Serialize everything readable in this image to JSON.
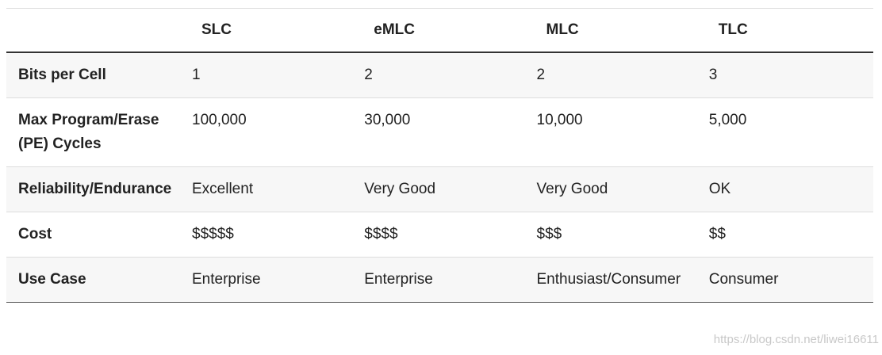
{
  "header": {
    "columns": [
      "SLC",
      "eMLC",
      "MLC",
      "TLC"
    ]
  },
  "table": {
    "rows": [
      {
        "label": "Bits per Cell",
        "cells": [
          "1",
          "2",
          "2",
          "3"
        ]
      },
      {
        "label": "Max Program/Erase (PE) Cycles",
        "cells": [
          "100,000",
          "30,000",
          "10,000",
          "5,000"
        ]
      },
      {
        "label": "Reliability/Endurance",
        "cells": [
          "Excellent",
          "Very Good",
          "Very Good",
          "OK"
        ]
      },
      {
        "label": "Cost",
        "cells": [
          "$$$$$",
          "$$$$",
          "$$$",
          "$$"
        ]
      },
      {
        "label": "Use Case",
        "cells": [
          "Enterprise",
          "Enterprise",
          "Enthusiast/Consumer",
          "Consumer"
        ]
      }
    ]
  },
  "watermark": "https://blog.csdn.net/liwei16611"
}
